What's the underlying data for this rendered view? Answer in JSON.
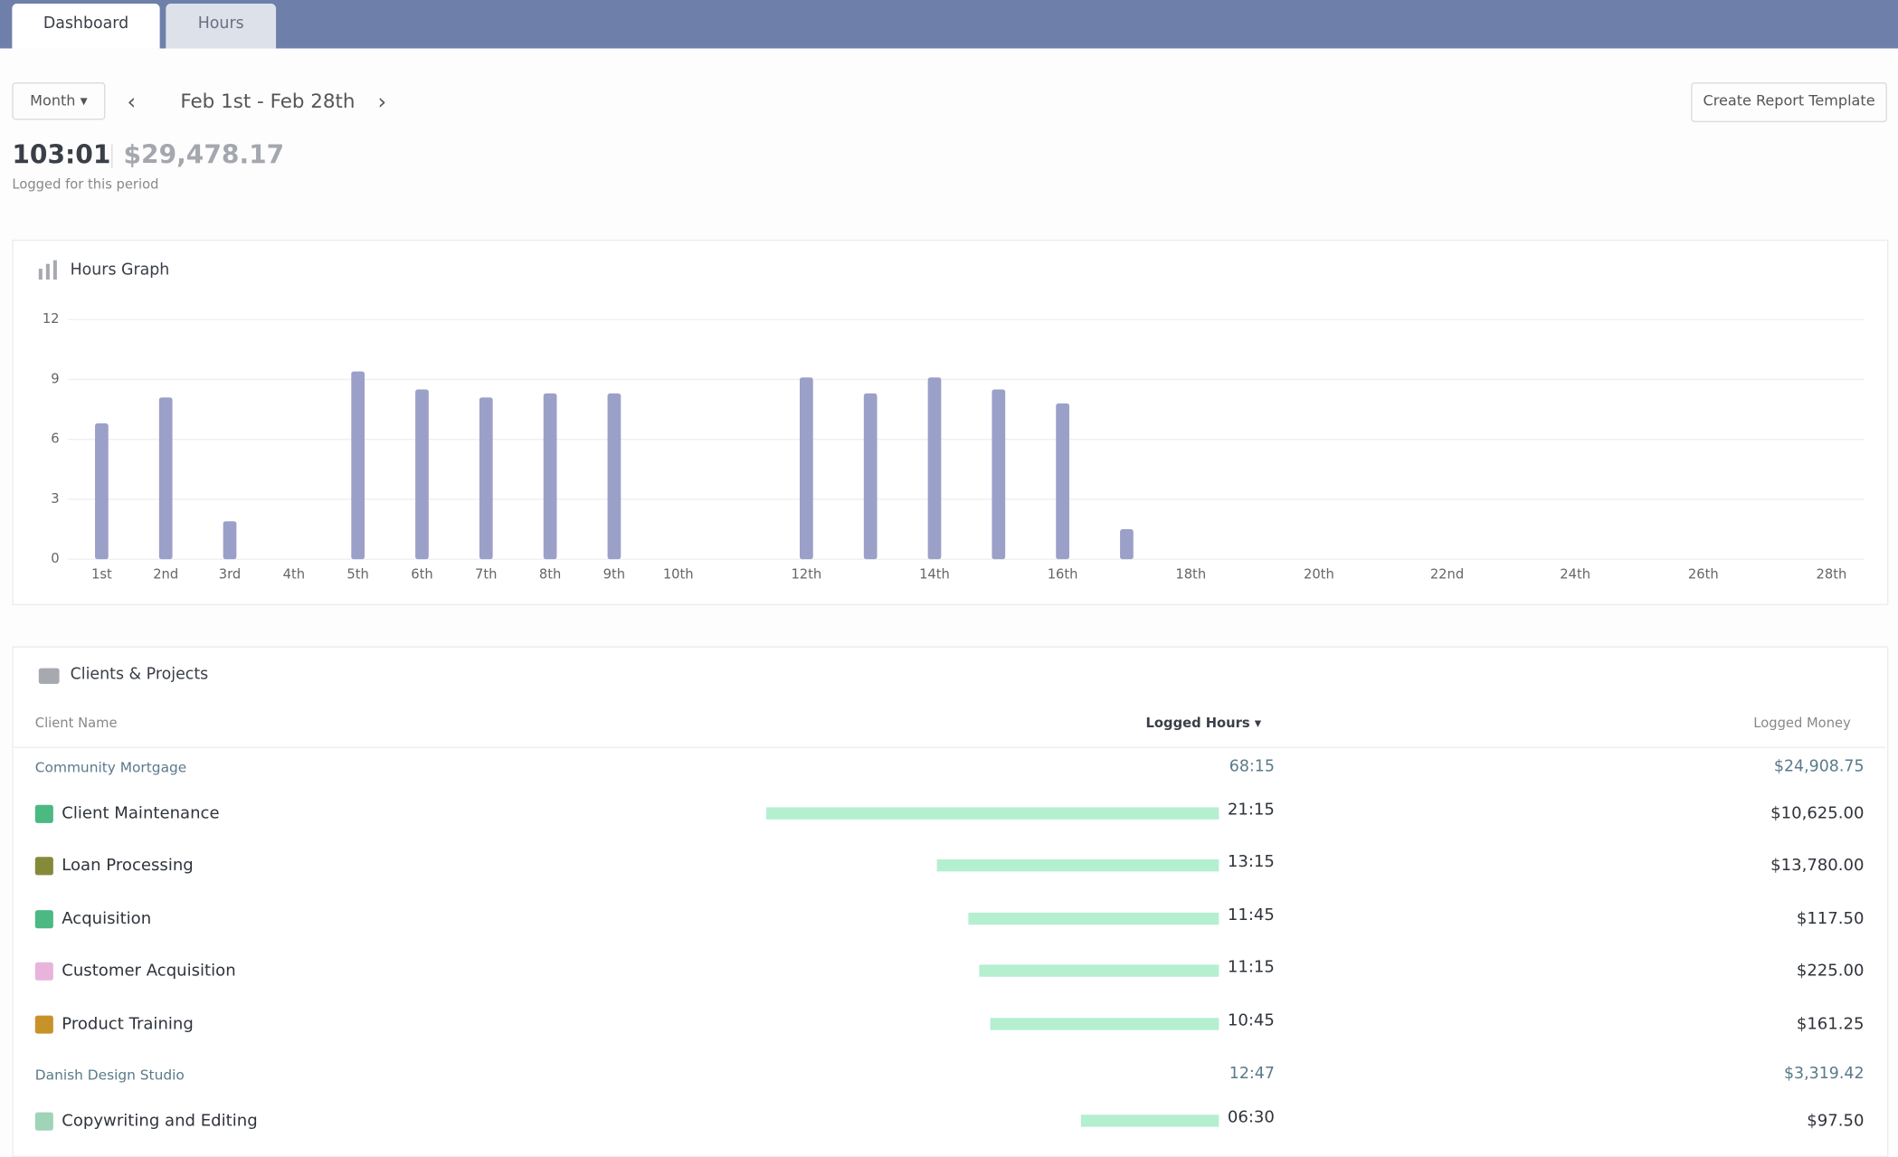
{
  "tabs": [
    "Dashboard",
    "Hours"
  ],
  "toolbar": {
    "period": "Month",
    "range": "Feb 1st - Feb 28th",
    "button": "Create Report Template"
  },
  "summary": {
    "hours": "103:01",
    "money": "$29,478.17",
    "caption": "Logged for this period"
  },
  "chart_data": {
    "type": "bar",
    "title": "Hours Graph",
    "categories": [
      "1st",
      "2nd",
      "3rd",
      "4th",
      "5th",
      "6th",
      "7th",
      "8th",
      "9th",
      "10th",
      null,
      "12th",
      null,
      "14th",
      null,
      "16th",
      null,
      "18th",
      null,
      "20th",
      null,
      "22nd",
      null,
      "24th",
      null,
      "26th",
      null,
      "28th"
    ],
    "values": [
      6.8,
      8.1,
      1.9,
      0,
      9.4,
      8.5,
      8.1,
      8.3,
      8.3,
      0,
      0,
      9.1,
      8.3,
      9.1,
      8.5,
      7.8,
      1.5,
      0,
      0,
      0,
      0,
      0,
      0,
      0,
      0,
      0,
      0,
      0
    ],
    "color": "#9aa0c8",
    "ylim": [
      0,
      12
    ],
    "yticks": [
      0,
      3,
      6,
      9,
      12
    ],
    "grid": true
  },
  "table": {
    "title": "Clients & Projects",
    "columns": [
      "Client Name",
      "Logged Hours",
      "Logged Money"
    ],
    "groups": [
      {
        "client": "Community Mortgage",
        "hours": "68:15",
        "money": "$24,908.75",
        "projects": [
          {
            "name": "Client Maintenance",
            "color": "#4cb882",
            "hours": "21:15",
            "money": "$10,625.00"
          },
          {
            "name": "Loan Processing",
            "color": "#858a3a",
            "hours": "13:15",
            "money": "$13,780.00"
          },
          {
            "name": "Acquisition",
            "color": "#4cb882",
            "hours": "11:45",
            "money": "$117.50"
          },
          {
            "name": "Customer Acquisition",
            "color": "#e8b4dc",
            "hours": "11:15",
            "money": "$225.00"
          },
          {
            "name": "Product Training",
            "color": "#c8922a",
            "hours": "10:45",
            "money": "$161.25"
          }
        ]
      },
      {
        "client": "Danish Design Studio",
        "hours": "12:47",
        "money": "$3,319.42",
        "projects": [
          {
            "name": "Copywriting and Editing",
            "color": "#9fd4b8",
            "hours": "06:30",
            "money": "$97.50"
          }
        ]
      }
    ]
  }
}
